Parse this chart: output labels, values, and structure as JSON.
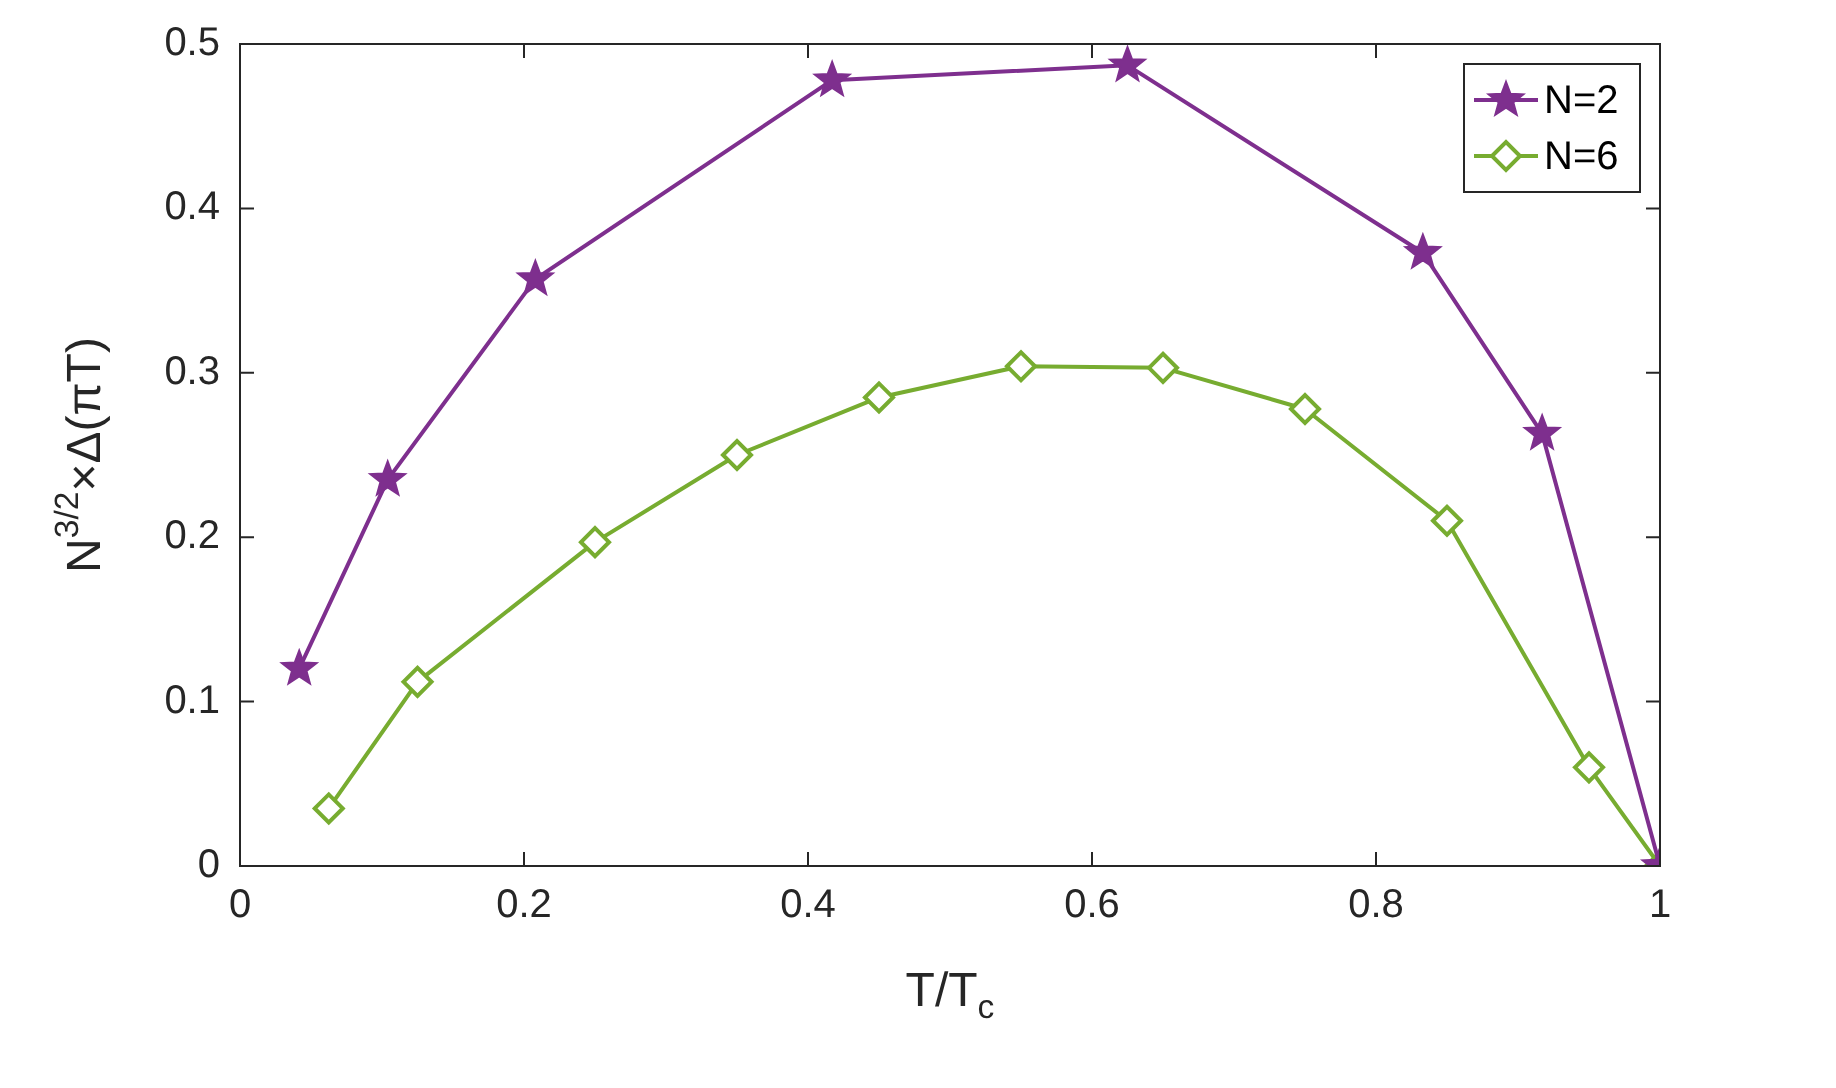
{
  "chart_data": {
    "type": "line",
    "xlabel": "T/T$_{c}$",
    "ylabel": "N$^{3/2}$×Δ(πT)",
    "xlim": [
      0,
      1
    ],
    "xticks": [
      0,
      0.2,
      0.4,
      0.6,
      0.8,
      1
    ],
    "ylim": [
      0,
      0.5
    ],
    "yticks": [
      0,
      0.1,
      0.2,
      0.3,
      0.4,
      0.5
    ],
    "grid": false,
    "legend": "top right",
    "line_style": "solid",
    "series": [
      {
        "name": "N=2",
        "color": "#7e2f8e",
        "marker": "star",
        "x": [
          0.0417,
          0.104,
          0.208,
          0.417,
          0.625,
          0.833,
          0.917,
          1
        ],
        "values": [
          0.12,
          0.235,
          0.357,
          0.478,
          0.487,
          0.373,
          0.263,
          0
        ]
      },
      {
        "name": "N=6",
        "color": "#77ac30",
        "marker": "diamond",
        "x": [
          0.0625,
          0.125,
          0.25,
          0.35,
          0.45,
          0.55,
          0.65,
          0.75,
          0.85,
          0.95,
          1
        ],
        "values": [
          0.035,
          0.112,
          0.197,
          0.25,
          0.285,
          0.304,
          0.303,
          0.278,
          0.21,
          0.06,
          0
        ]
      }
    ]
  }
}
